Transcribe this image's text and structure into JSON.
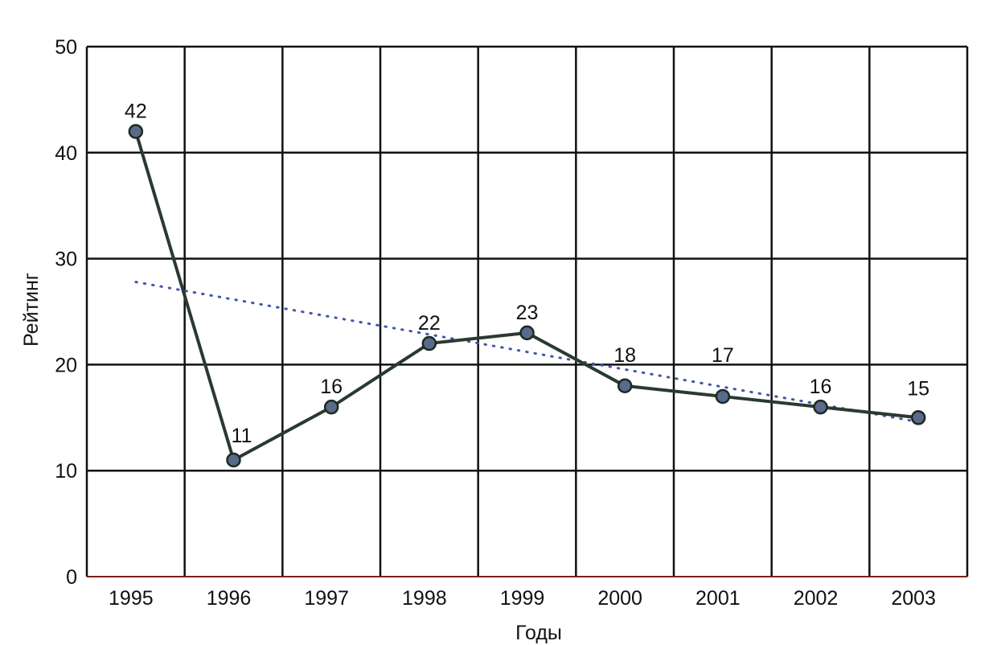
{
  "chart_data": {
    "type": "line",
    "title": "",
    "xlabel": "Годы",
    "ylabel": "Рейтинг",
    "ylim": [
      0,
      50
    ],
    "yticks": [
      0,
      10,
      20,
      30,
      40,
      50
    ],
    "categories": [
      "1995",
      "1996",
      "1997",
      "1998",
      "1999",
      "2000",
      "2001",
      "2002",
      "2003"
    ],
    "series": [
      {
        "values": [
          42,
          11,
          16,
          22,
          23,
          18,
          17,
          16,
          15
        ],
        "color": "#2a3a30",
        "marker_color": "#5a6a8a"
      }
    ],
    "data_labels": [
      "42",
      "11",
      "16",
      "22",
      "23",
      "18",
      "17",
      "16",
      "15"
    ],
    "trendline": {
      "style": "dotted",
      "start": 27.8,
      "end": 14.6,
      "color": "#4455aa"
    },
    "grid": true,
    "legend": "none"
  }
}
